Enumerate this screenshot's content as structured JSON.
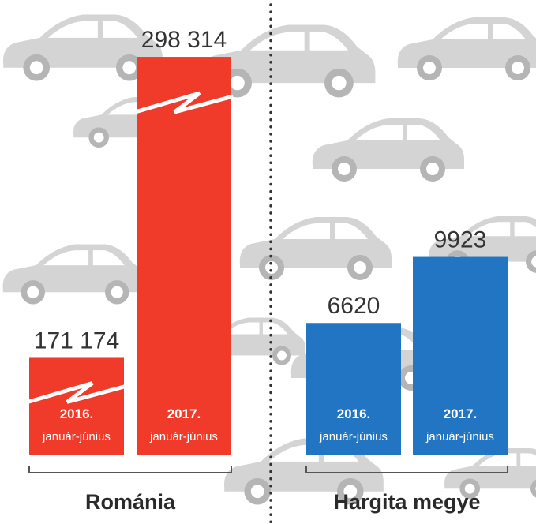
{
  "chart_data": {
    "type": "bar",
    "groups": [
      {
        "name": "Románia",
        "color": "#f03a2a",
        "axis_broken": true,
        "bars": [
          {
            "year": "2016.",
            "period": "január-június",
            "value": 171174,
            "display": "171 174"
          },
          {
            "year": "2017.",
            "period": "január-június",
            "value": 298314,
            "display": "298 314"
          }
        ]
      },
      {
        "name": "Hargita megye",
        "color": "#2275c2",
        "axis_broken": false,
        "bars": [
          {
            "year": "2016.",
            "period": "január-június",
            "value": 6620,
            "display": "6620"
          },
          {
            "year": "2017.",
            "period": "január-június",
            "value": 9923,
            "display": "9923"
          }
        ]
      }
    ],
    "separator": "dotted-vertical",
    "background": "car silhouettes"
  }
}
